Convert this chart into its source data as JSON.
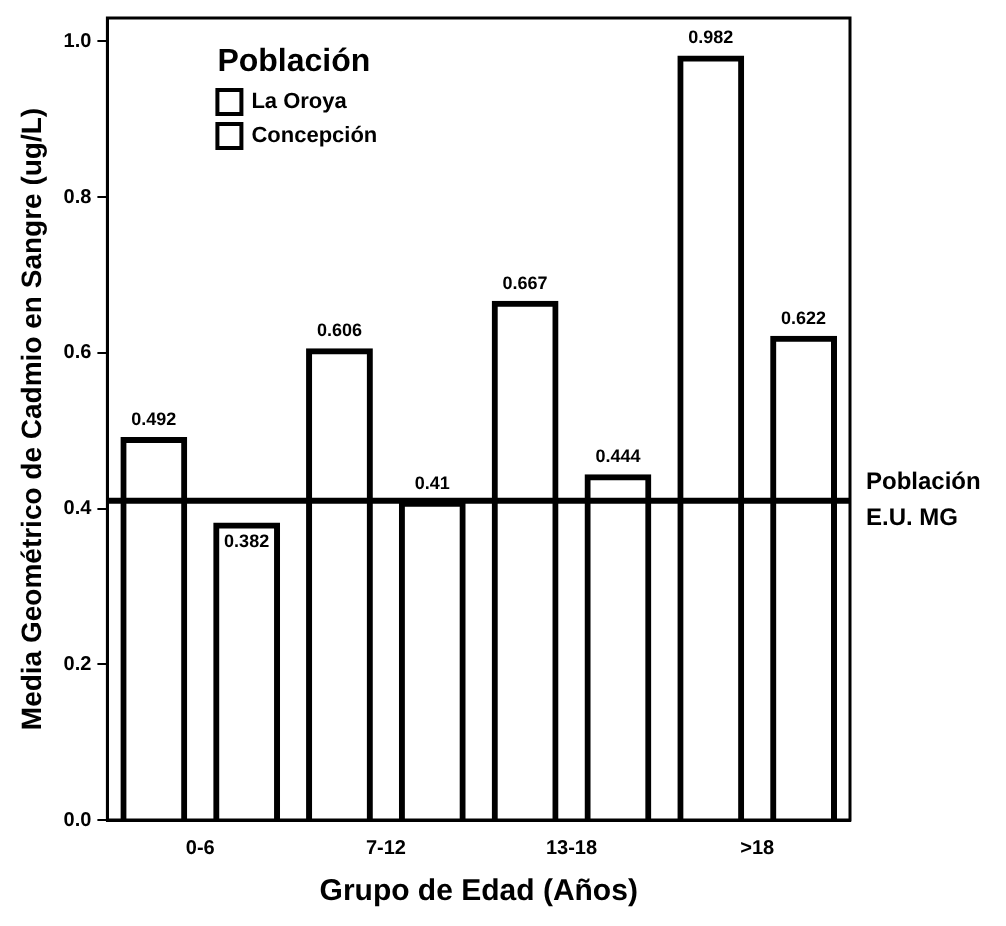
{
  "chart_data": {
    "type": "bar",
    "xlabel": "Grupo de Edad (Años)",
    "ylabel": "Media Geométrico de Cadmio en Sangre (ug/L)",
    "legend_title": "Población",
    "categories": [
      "0-6",
      "7-12",
      "13-18",
      ">18"
    ],
    "series": [
      {
        "name": "La Oroya",
        "color": "#000000",
        "values": [
          0.492,
          0.606,
          0.667,
          0.982
        ]
      },
      {
        "name": "Concepción",
        "color": "#000000",
        "values": [
          0.382,
          0.41,
          0.444,
          0.622
        ]
      }
    ],
    "ylim": [
      0,
      1.03
    ],
    "yticks": [
      {
        "value": 0,
        "label": "0.0"
      },
      {
        "value": 0.2,
        "label": "0.2"
      },
      {
        "value": 0.4,
        "label": "0.4"
      },
      {
        "value": 0.6,
        "label": "0.6"
      },
      {
        "value": 0.8,
        "label": "0.8"
      },
      {
        "value": 1,
        "label": "1.0"
      }
    ],
    "ref_lines": [
      {
        "axis": "y",
        "value": 0.41,
        "label": "Población E.U. MG",
        "color": "#000000"
      }
    ],
    "data_labels": true,
    "grid": false,
    "legend": "top left"
  }
}
